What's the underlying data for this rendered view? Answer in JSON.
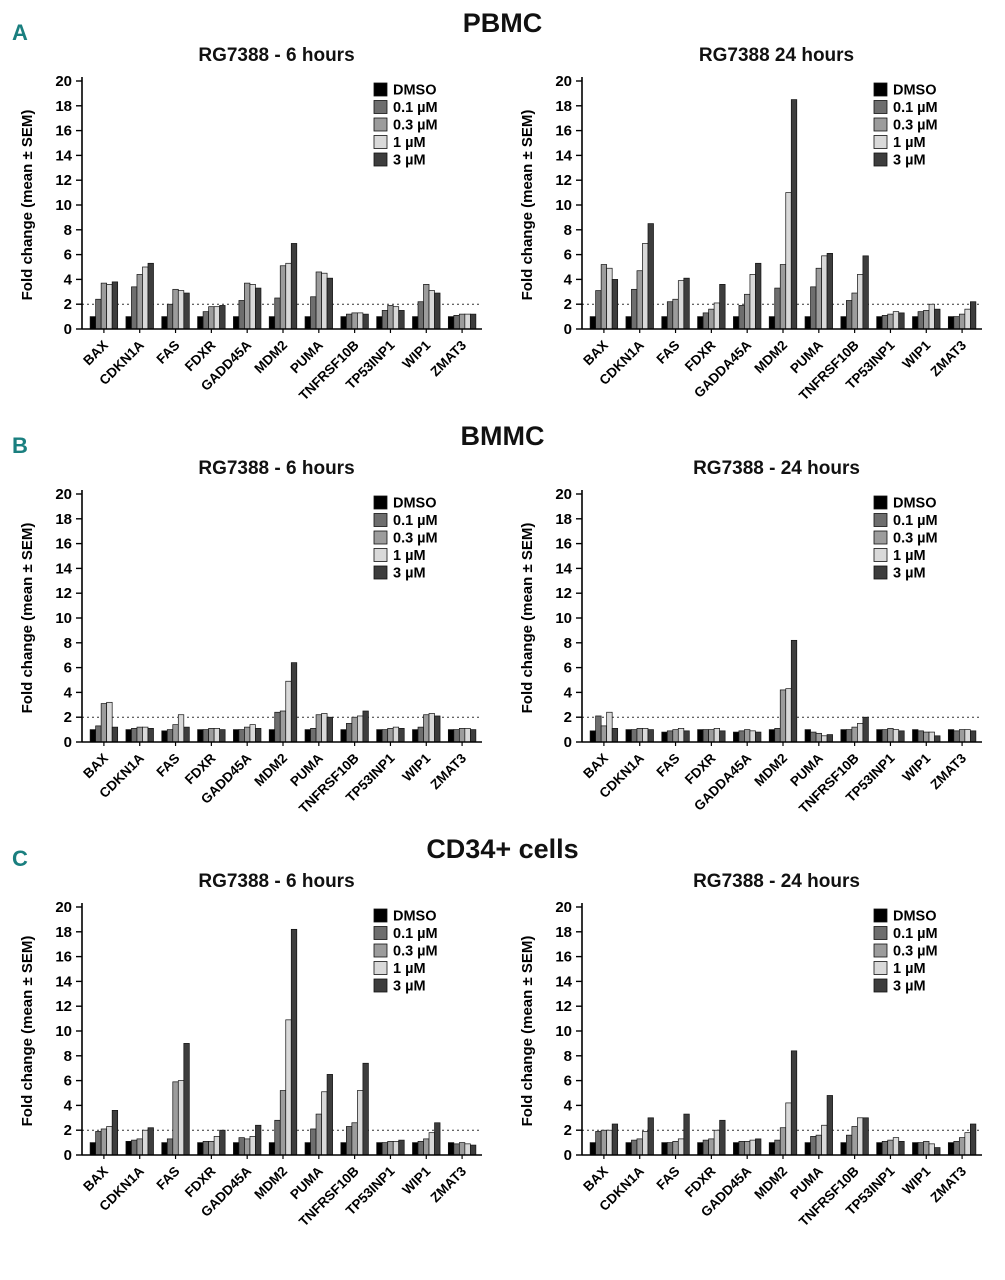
{
  "figure": {
    "section_label_color": "#1a7f7f",
    "sections": [
      {
        "label": "A",
        "title": "PBMC"
      },
      {
        "label": "B",
        "title": "BMMC"
      },
      {
        "label": "C",
        "title": "CD34+ cells"
      }
    ]
  },
  "chart_data": [
    {
      "type": "bar",
      "section": "PBMC",
      "title": "RG7388 - 6 hours",
      "ylabel": "Fold change (mean ± SEM)",
      "ylim": [
        0,
        20
      ],
      "ytick_step": 2,
      "reference_line": 2,
      "legend_position": "top-right",
      "grid": false,
      "categories": [
        "BAX",
        "CDKN1A",
        "FAS",
        "FDXR",
        "GADD45A",
        "MDM2",
        "PUMA",
        "TNFRSF10B",
        "TP53INP1",
        "WIP1",
        "ZMAT3"
      ],
      "series": [
        {
          "name": "DMSO",
          "color": "#000000",
          "values": [
            1.0,
            1.0,
            1.0,
            1.0,
            1.0,
            1.0,
            1.0,
            1.0,
            1.0,
            1.0,
            1.0
          ]
        },
        {
          "name": "0.1 µM",
          "color": "#6e6e6e",
          "values": [
            2.4,
            3.4,
            2.0,
            1.4,
            2.3,
            2.5,
            2.6,
            1.2,
            1.5,
            2.2,
            1.1
          ]
        },
        {
          "name": "0.3 µM",
          "color": "#9c9c9c",
          "values": [
            3.7,
            4.4,
            3.2,
            1.8,
            3.7,
            5.1,
            4.6,
            1.3,
            1.9,
            3.6,
            1.2
          ]
        },
        {
          "name": "1 µM",
          "color": "#d9d9d9",
          "values": [
            3.6,
            5.0,
            3.1,
            1.8,
            3.6,
            5.3,
            4.5,
            1.3,
            1.8,
            3.1,
            1.2
          ]
        },
        {
          "name": "3 µM",
          "color": "#3d3d3d",
          "values": [
            3.8,
            5.3,
            2.9,
            1.9,
            3.3,
            6.9,
            4.1,
            1.2,
            1.5,
            2.9,
            1.2
          ]
        }
      ]
    },
    {
      "type": "bar",
      "section": "PBMC",
      "title": "RG7388 24 hours",
      "ylabel": "Fold change (mean ± SEM)",
      "ylim": [
        0,
        20
      ],
      "ytick_step": 2,
      "reference_line": 2,
      "legend_position": "top-right",
      "grid": false,
      "categories": [
        "BAX",
        "CDKN1A",
        "FAS",
        "FDXR",
        "GADDA45A",
        "MDM2",
        "PUMA",
        "TNFRSF10B",
        "TP53INP1",
        "WIP1",
        "ZMAT3"
      ],
      "series": [
        {
          "name": "DMSO",
          "color": "#000000",
          "values": [
            1.0,
            1.0,
            1.0,
            1.0,
            1.0,
            1.0,
            1.0,
            1.0,
            1.0,
            1.0,
            1.0
          ]
        },
        {
          "name": "0.1 µM",
          "color": "#6e6e6e",
          "values": [
            3.1,
            3.2,
            2.2,
            1.3,
            1.9,
            3.3,
            3.4,
            2.3,
            1.1,
            1.4,
            1.0
          ]
        },
        {
          "name": "0.3 µM",
          "color": "#9c9c9c",
          "values": [
            5.2,
            4.7,
            2.4,
            1.6,
            2.8,
            5.2,
            4.9,
            2.9,
            1.2,
            1.5,
            1.2
          ]
        },
        {
          "name": "1 µM",
          "color": "#d9d9d9",
          "values": [
            4.9,
            6.9,
            3.9,
            2.1,
            4.4,
            11.0,
            5.9,
            4.4,
            1.4,
            2.0,
            1.6
          ]
        },
        {
          "name": "3 µM",
          "color": "#3d3d3d",
          "values": [
            4.0,
            8.5,
            4.1,
            3.6,
            5.3,
            18.5,
            6.1,
            5.9,
            1.3,
            1.6,
            2.2
          ]
        }
      ]
    },
    {
      "type": "bar",
      "section": "BMMC",
      "title": "RG7388 - 6 hours",
      "ylabel": "Fold change (mean ± SEM)",
      "ylim": [
        0,
        20
      ],
      "ytick_step": 2,
      "reference_line": 2,
      "legend_position": "top-right",
      "grid": false,
      "categories": [
        "BAX",
        "CDKN1A",
        "FAS",
        "FDXR",
        "GADD45A",
        "MDM2",
        "PUMA",
        "TNFRSF10B",
        "TP53INP1",
        "WIP1",
        "ZMAT3"
      ],
      "series": [
        {
          "name": "DMSO",
          "color": "#000000",
          "values": [
            1.0,
            1.0,
            0.9,
            1.0,
            1.0,
            1.0,
            1.0,
            1.0,
            1.0,
            1.0,
            1.0
          ]
        },
        {
          "name": "0.1 µM",
          "color": "#6e6e6e",
          "values": [
            1.3,
            1.1,
            1.0,
            1.0,
            1.0,
            2.4,
            1.1,
            1.5,
            1.0,
            1.2,
            1.0
          ]
        },
        {
          "name": "0.3 µM",
          "color": "#9c9c9c",
          "values": [
            3.1,
            1.2,
            1.4,
            1.1,
            1.2,
            2.5,
            2.2,
            2.0,
            1.1,
            2.2,
            1.1
          ]
        },
        {
          "name": "1 µM",
          "color": "#d9d9d9",
          "values": [
            3.2,
            1.2,
            2.2,
            1.1,
            1.4,
            4.9,
            2.3,
            2.1,
            1.2,
            2.3,
            1.1
          ]
        },
        {
          "name": "3 µM",
          "color": "#3d3d3d",
          "values": [
            1.2,
            1.1,
            1.2,
            1.0,
            1.1,
            6.4,
            2.0,
            2.5,
            1.1,
            2.1,
            1.0
          ]
        }
      ]
    },
    {
      "type": "bar",
      "section": "BMMC",
      "title": "RG7388 - 24 hours",
      "ylabel": "Fold change (mean ± SEM)",
      "ylim": [
        0,
        20
      ],
      "ytick_step": 2,
      "reference_line": 2,
      "legend_position": "top-right",
      "grid": false,
      "categories": [
        "BAX",
        "CDKN1A",
        "FAS",
        "FDXR",
        "GADDA45A",
        "MDM2",
        "PUMA",
        "TNFRSF10B",
        "TP53INP1",
        "WIP1",
        "ZMAT3"
      ],
      "series": [
        {
          "name": "DMSO",
          "color": "#000000",
          "values": [
            0.9,
            1.0,
            0.8,
            1.0,
            0.8,
            1.0,
            1.0,
            1.0,
            1.0,
            1.0,
            1.0
          ]
        },
        {
          "name": "0.1 µM",
          "color": "#6e6e6e",
          "values": [
            2.1,
            1.0,
            0.9,
            1.0,
            0.9,
            1.1,
            0.8,
            1.0,
            1.0,
            0.9,
            0.9
          ]
        },
        {
          "name": "0.3 µM",
          "color": "#9c9c9c",
          "values": [
            1.3,
            1.1,
            1.0,
            1.0,
            1.0,
            4.2,
            0.7,
            1.2,
            1.1,
            0.8,
            1.0
          ]
        },
        {
          "name": "1 µM",
          "color": "#d9d9d9",
          "values": [
            2.4,
            1.1,
            1.1,
            1.1,
            0.9,
            4.3,
            0.5,
            1.5,
            1.0,
            0.8,
            1.0
          ]
        },
        {
          "name": "3 µM",
          "color": "#3d3d3d",
          "values": [
            1.1,
            1.0,
            0.9,
            0.9,
            0.8,
            8.2,
            0.6,
            2.0,
            0.9,
            0.5,
            0.9
          ]
        }
      ]
    },
    {
      "type": "bar",
      "section": "CD34+ cells",
      "title": "RG7388 - 6 hours",
      "ylabel": "Fold change (mean ± SEM)",
      "ylim": [
        0,
        20
      ],
      "ytick_step": 2,
      "reference_line": 2,
      "legend_position": "top-right",
      "grid": false,
      "categories": [
        "BAX",
        "CDKN1A",
        "FAS",
        "FDXR",
        "GADD45A",
        "MDM2",
        "PUMA",
        "TNFRSF10B",
        "TP53INP1",
        "WIP1",
        "ZMAT3"
      ],
      "series": [
        {
          "name": "DMSO",
          "color": "#000000",
          "values": [
            1.0,
            1.1,
            1.0,
            1.0,
            1.0,
            1.0,
            1.0,
            1.0,
            1.0,
            1.0,
            1.0
          ]
        },
        {
          "name": "0.1 µM",
          "color": "#6e6e6e",
          "values": [
            1.9,
            1.2,
            1.3,
            1.1,
            1.4,
            2.8,
            2.1,
            2.3,
            1.0,
            1.1,
            0.9
          ]
        },
        {
          "name": "0.3 µM",
          "color": "#9c9c9c",
          "values": [
            2.1,
            1.3,
            5.9,
            1.1,
            1.3,
            5.2,
            3.3,
            2.6,
            1.1,
            1.3,
            1.0
          ]
        },
        {
          "name": "1 µM",
          "color": "#d9d9d9",
          "values": [
            2.3,
            2.0,
            6.0,
            1.5,
            1.5,
            10.9,
            5.1,
            5.2,
            1.1,
            1.8,
            0.9
          ]
        },
        {
          "name": "3 µM",
          "color": "#3d3d3d",
          "values": [
            3.6,
            2.2,
            9.0,
            2.0,
            2.4,
            18.2,
            6.5,
            7.4,
            1.2,
            2.6,
            0.8
          ]
        }
      ]
    },
    {
      "type": "bar",
      "section": "CD34+ cells",
      "title": "RG7388 - 24 hours",
      "ylabel": "Fold change (mean ± SEM)",
      "ylim": [
        0,
        20
      ],
      "ytick_step": 2,
      "reference_line": 2,
      "legend_position": "top-right",
      "grid": false,
      "categories": [
        "BAX",
        "CDKN1A",
        "FAS",
        "FDXR",
        "GADD45A",
        "MDM2",
        "PUMA",
        "TNFRSF10B",
        "TP53INP1",
        "WIP1",
        "ZMAT3"
      ],
      "series": [
        {
          "name": "DMSO",
          "color": "#000000",
          "values": [
            1.0,
            1.0,
            1.0,
            1.0,
            1.0,
            1.0,
            1.0,
            1.0,
            1.0,
            1.0,
            1.0
          ]
        },
        {
          "name": "0.1 µM",
          "color": "#6e6e6e",
          "values": [
            1.9,
            1.2,
            1.0,
            1.2,
            1.1,
            1.2,
            1.5,
            1.6,
            1.1,
            1.0,
            1.1
          ]
        },
        {
          "name": "0.3 µM",
          "color": "#9c9c9c",
          "values": [
            2.0,
            1.3,
            1.1,
            1.3,
            1.1,
            2.2,
            1.6,
            2.3,
            1.2,
            1.1,
            1.4
          ]
        },
        {
          "name": "1 µM",
          "color": "#d9d9d9",
          "values": [
            2.0,
            1.9,
            1.3,
            2.0,
            1.2,
            4.2,
            2.4,
            3.0,
            1.4,
            0.9,
            1.8
          ]
        },
        {
          "name": "3 µM",
          "color": "#3d3d3d",
          "values": [
            2.5,
            3.0,
            3.3,
            2.8,
            1.3,
            8.4,
            4.8,
            3.0,
            1.1,
            0.6,
            2.5
          ]
        }
      ]
    }
  ]
}
